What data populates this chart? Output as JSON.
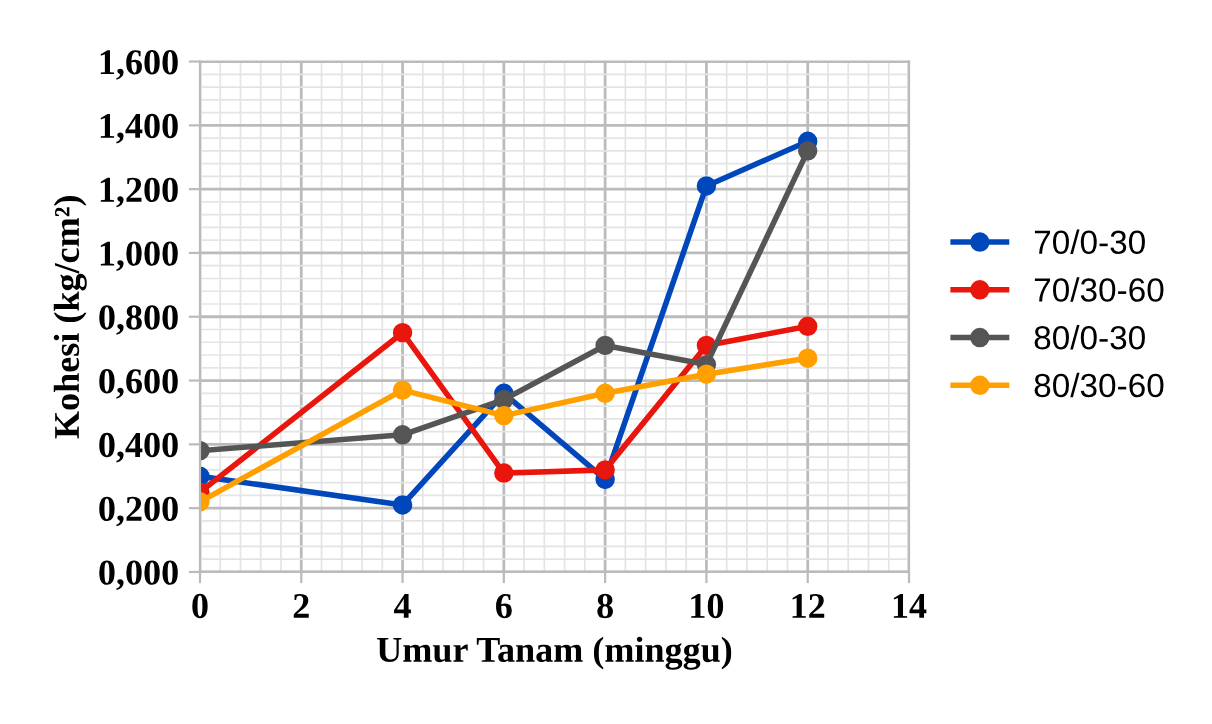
{
  "chart_data": {
    "type": "line",
    "xlabel": "Umur Tanam (minggu)",
    "ylabel": "Kohesi (kg/cm²)",
    "x": [
      0,
      4,
      6,
      8,
      10,
      12
    ],
    "series": [
      {
        "name": "70/0-30",
        "color": "#0047bb",
        "values": [
          0.3,
          0.21,
          0.56,
          0.29,
          1.21,
          1.35
        ]
      },
      {
        "name": "70/30-60",
        "color": "#e8160c",
        "values": [
          0.25,
          0.75,
          0.31,
          0.32,
          0.71,
          0.77
        ]
      },
      {
        "name": "80/0-30",
        "color": "#555555",
        "values": [
          0.38,
          0.43,
          0.54,
          0.71,
          0.65,
          1.32
        ]
      },
      {
        "name": "80/30-60",
        "color": "#ffa000",
        "values": [
          0.22,
          0.57,
          0.49,
          0.56,
          0.62,
          0.67
        ]
      }
    ],
    "xlim": [
      0,
      14
    ],
    "xticks": [
      0,
      2,
      4,
      6,
      8,
      10,
      12,
      14
    ],
    "ylim": [
      0,
      1.6
    ],
    "yticks": [
      {
        "value": 0,
        "label": "0,000"
      },
      {
        "value": 0.2,
        "label": "0,200"
      },
      {
        "value": 0.4,
        "label": "0,400"
      },
      {
        "value": 0.6,
        "label": "0,600"
      },
      {
        "value": 0.8,
        "label": "0,800"
      },
      {
        "value": 1.0,
        "label": "1,000"
      },
      {
        "value": 1.2,
        "label": "1,200"
      },
      {
        "value": 1.4,
        "label": "1,400"
      },
      {
        "value": 1.6,
        "label": "1,600"
      }
    ],
    "grid": true,
    "legend": "right",
    "marker": "circle",
    "line_style": "solid"
  }
}
